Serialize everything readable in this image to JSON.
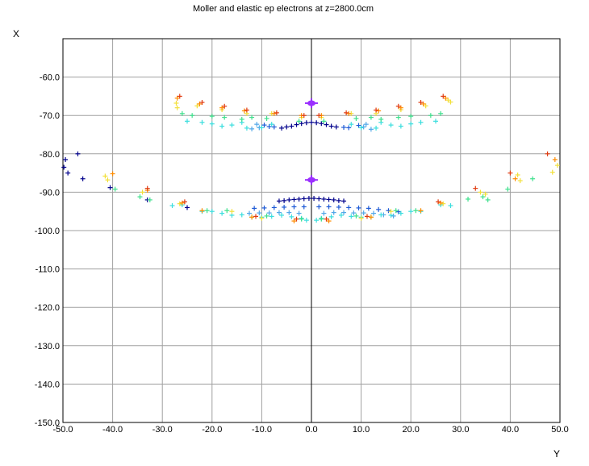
{
  "chart_data": {
    "type": "scatter",
    "title": "Moller and elastic ep electrons at z=2800.0cm",
    "xlabel": "Y",
    "ylabel": "X",
    "xlim": [
      -50,
      50
    ],
    "ylim": [
      -150,
      -50
    ],
    "x_ticks": [
      "-50.0",
      "-40.0",
      "-30.0",
      "-20.0",
      "-10.0",
      "0.0",
      "10.0",
      "20.0",
      "30.0",
      "40.0",
      "50.0"
    ],
    "y_ticks": [
      "-60.0",
      "-70.0",
      "-80.0",
      "-90.0",
      "-100.0",
      "-110.0",
      "-120.0",
      "-130.0",
      "-140.0",
      "-150.0"
    ],
    "grid": true,
    "marker": "+",
    "beam_markers": [
      {
        "x": 0,
        "y": -66.8,
        "color": "#9b30ff"
      },
      {
        "x": 0,
        "y": -86.8,
        "color": "#9b30ff"
      }
    ],
    "series": [
      {
        "color": "#00008b",
        "points": [
          [
            -49.5,
            -81.5
          ],
          [
            -49.8,
            -83.5
          ],
          [
            -49,
            -85
          ],
          [
            -47,
            -80
          ],
          [
            -46,
            -86.5
          ],
          [
            -40.5,
            -88.8
          ],
          [
            -33,
            -92
          ],
          [
            -25,
            -94
          ],
          [
            -6.5,
            -92.3
          ],
          [
            -5.5,
            -92.2
          ],
          [
            -4.5,
            -92
          ],
          [
            -3.5,
            -91.9
          ],
          [
            -2.5,
            -91.8
          ],
          [
            -1.5,
            -91.7
          ],
          [
            -0.5,
            -91.6
          ],
          [
            0.5,
            -91.6
          ],
          [
            1.5,
            -91.7
          ],
          [
            2.5,
            -91.8
          ],
          [
            3.5,
            -91.9
          ],
          [
            4.5,
            -92
          ],
          [
            5.5,
            -92.2
          ],
          [
            6.5,
            -92.3
          ],
          [
            -6,
            -73.3
          ],
          [
            -5,
            -73
          ],
          [
            -4,
            -72.8
          ],
          [
            -3,
            -72.4
          ],
          [
            -2,
            -72.1
          ],
          [
            -1,
            -71.9
          ],
          [
            0,
            -71.8
          ],
          [
            1,
            -71.9
          ],
          [
            2,
            -72.1
          ],
          [
            3,
            -72.4
          ],
          [
            4,
            -72.8
          ],
          [
            5,
            -73
          ]
        ]
      },
      {
        "color": "#1e5bd6",
        "points": [
          [
            -11.5,
            -94.2
          ],
          [
            -9.5,
            -94.1
          ],
          [
            -7.5,
            -94
          ],
          [
            -5.5,
            -93.9
          ],
          [
            -3.5,
            -93.8
          ],
          [
            -1.5,
            -93.8
          ],
          [
            1.5,
            -93.8
          ],
          [
            3.5,
            -93.8
          ],
          [
            5.5,
            -93.9
          ],
          [
            7.5,
            -94
          ],
          [
            9.5,
            -94.1
          ],
          [
            11.5,
            -94.2
          ],
          [
            13.5,
            -94.5
          ],
          [
            15.5,
            -94.8
          ],
          [
            17.5,
            -95.1
          ],
          [
            -8.5,
            -72.9
          ],
          [
            -7.5,
            -73
          ],
          [
            6.5,
            -73.1
          ],
          [
            7.5,
            -73.2
          ],
          [
            -9.5,
            -72.5
          ],
          [
            9.5,
            -72.6
          ]
        ]
      },
      {
        "color": "#4fa6e8",
        "points": [
          [
            -12.5,
            -95.5
          ],
          [
            -10.5,
            -95.4
          ],
          [
            -8.5,
            -95.4
          ],
          [
            -6.5,
            -95.3
          ],
          [
            -4.5,
            -95.3
          ],
          [
            -2.5,
            -95.5
          ],
          [
            2.5,
            -95.5
          ],
          [
            4.5,
            -95.3
          ],
          [
            6.5,
            -95.3
          ],
          [
            8.5,
            -95.4
          ],
          [
            10.5,
            -95.4
          ],
          [
            12.5,
            -95.5
          ],
          [
            14.5,
            -95.9
          ],
          [
            16.5,
            -96.2
          ],
          [
            -11,
            -72.3
          ],
          [
            -10.5,
            -73.2
          ],
          [
            10.5,
            -73
          ],
          [
            11,
            -72.3
          ],
          [
            -12,
            -73.5
          ],
          [
            12,
            -73.6
          ]
        ]
      },
      {
        "color": "#3bdede",
        "points": [
          [
            -28,
            -93.5
          ],
          [
            -26,
            -93.3
          ],
          [
            -22,
            -95
          ],
          [
            -20,
            -95
          ],
          [
            -18,
            -95.5
          ],
          [
            -16,
            -96
          ],
          [
            -14,
            -95.9
          ],
          [
            -10,
            -96.5
          ],
          [
            -8,
            -96.3
          ],
          [
            -6,
            -96
          ],
          [
            -4,
            -96.4
          ],
          [
            -2,
            -96.8
          ],
          [
            -1,
            -97.3
          ],
          [
            1,
            -97.3
          ],
          [
            2,
            -96.8
          ],
          [
            4,
            -96.4
          ],
          [
            6,
            -96
          ],
          [
            8,
            -96.3
          ],
          [
            10,
            -96.5
          ],
          [
            14,
            -95.9
          ],
          [
            16,
            -96
          ],
          [
            18,
            -95.5
          ],
          [
            20,
            -95
          ],
          [
            22,
            -95
          ],
          [
            26,
            -93.3
          ],
          [
            28,
            -93.5
          ],
          [
            -25,
            -71.5
          ],
          [
            -22,
            -71.8
          ],
          [
            -20,
            -72.2
          ],
          [
            -18,
            -72.8
          ],
          [
            -16,
            -72.5
          ],
          [
            -14,
            -71.8
          ],
          [
            -13,
            -73.3
          ],
          [
            -10,
            -73.2
          ],
          [
            -8,
            -72.3
          ],
          [
            8,
            -72.3
          ],
          [
            10,
            -73.2
          ],
          [
            13,
            -73.3
          ],
          [
            14,
            -71.8
          ],
          [
            16,
            -72.5
          ],
          [
            18,
            -72.8
          ],
          [
            20,
            -72.2
          ],
          [
            22,
            -71.8
          ],
          [
            25,
            -71.5
          ]
        ]
      },
      {
        "color": "#3ee08c",
        "points": [
          [
            -39.5,
            -89.2
          ],
          [
            -34.5,
            -91.2
          ],
          [
            -32.5,
            -92
          ],
          [
            -21,
            -94.8
          ],
          [
            -17,
            -94.8
          ],
          [
            -12,
            -96.5
          ],
          [
            -9,
            -96.2
          ],
          [
            -2,
            -97
          ],
          [
            2,
            -97
          ],
          [
            9,
            -96.2
          ],
          [
            12,
            -96.5
          ],
          [
            17,
            -94.8
          ],
          [
            21,
            -94.8
          ],
          [
            31.5,
            -91.8
          ],
          [
            34.5,
            -91.2
          ],
          [
            35.5,
            -92
          ],
          [
            39.5,
            -89.2
          ],
          [
            44.5,
            -86.5
          ],
          [
            -26,
            -69.5
          ],
          [
            -24,
            -70
          ],
          [
            -20,
            -70.2
          ],
          [
            -17.5,
            -70.5
          ],
          [
            -14,
            -71
          ],
          [
            -12,
            -70.5
          ],
          [
            -9,
            -70.8
          ],
          [
            -2.5,
            -71.5
          ],
          [
            2.5,
            -71.5
          ],
          [
            9,
            -70.8
          ],
          [
            12,
            -70.5
          ],
          [
            14,
            -71
          ],
          [
            17.5,
            -70.5
          ],
          [
            20,
            -70.2
          ],
          [
            24,
            -70
          ],
          [
            26,
            -69.5
          ]
        ]
      },
      {
        "color": "#f2e03a",
        "points": [
          [
            -41.5,
            -85.8
          ],
          [
            -41,
            -86.8
          ],
          [
            -34,
            -90
          ],
          [
            -26.5,
            -93
          ],
          [
            -23,
            -67.5
          ],
          [
            -27.2,
            -66.8
          ],
          [
            -27,
            -68
          ],
          [
            -18,
            -68.5
          ],
          [
            -13,
            -69.5
          ],
          [
            -8,
            -69.5
          ],
          [
            -2,
            -70.5
          ],
          [
            2,
            -70.5
          ],
          [
            8,
            -69.5
          ],
          [
            13,
            -69.5
          ],
          [
            18,
            -68.5
          ],
          [
            23,
            -67.5
          ],
          [
            27.5,
            -66
          ],
          [
            28,
            -66.5
          ],
          [
            26.5,
            -93
          ],
          [
            34,
            -90
          ],
          [
            35,
            -90.5
          ],
          [
            41.5,
            -85.5
          ],
          [
            42,
            -87
          ],
          [
            49.5,
            -83
          ],
          [
            48.5,
            -84.8
          ],
          [
            -16,
            -95
          ],
          [
            -10,
            -96.8
          ],
          [
            10,
            -96.8
          ],
          [
            16,
            -95
          ]
        ]
      },
      {
        "color": "#ff8c00",
        "points": [
          [
            -40,
            -85.2
          ],
          [
            -33,
            -89.5
          ],
          [
            -26,
            -92.8
          ],
          [
            -22,
            -94.8
          ],
          [
            -27,
            -65.5
          ],
          [
            -22.5,
            -67
          ],
          [
            -18,
            -68
          ],
          [
            -13.5,
            -68.8
          ],
          [
            -7.5,
            -69.5
          ],
          [
            -2,
            -70
          ],
          [
            2,
            -70
          ],
          [
            7.5,
            -69.5
          ],
          [
            13.5,
            -68.8
          ],
          [
            18,
            -68
          ],
          [
            22.5,
            -67
          ],
          [
            27,
            -65.5
          ],
          [
            26,
            -92.8
          ],
          [
            22,
            -94.8
          ],
          [
            41,
            -86.5
          ],
          [
            49,
            -81.5
          ],
          [
            -12,
            -96.5
          ],
          [
            -3.5,
            -97.5
          ],
          [
            3.5,
            -97.5
          ],
          [
            12,
            -96.5
          ]
        ]
      },
      {
        "color": "#e03b10",
        "points": [
          [
            -26.5,
            -65
          ],
          [
            -22,
            -66.6
          ],
          [
            -17.5,
            -67.6
          ],
          [
            -13,
            -68.6
          ],
          [
            -7,
            -69.3
          ],
          [
            -1.5,
            -70
          ],
          [
            1.5,
            -70
          ],
          [
            7,
            -69.3
          ],
          [
            13,
            -68.6
          ],
          [
            17.5,
            -67.6
          ],
          [
            22,
            -66.6
          ],
          [
            26.5,
            -65
          ],
          [
            40,
            -85
          ],
          [
            47.5,
            -80
          ],
          [
            -11.2,
            -96.3
          ],
          [
            -3,
            -97
          ],
          [
            3,
            -97
          ],
          [
            11.2,
            -96.3
          ],
          [
            -25.5,
            -92.5
          ],
          [
            25.5,
            -92.5
          ],
          [
            -33,
            -89
          ],
          [
            33,
            -89
          ]
        ]
      }
    ]
  }
}
